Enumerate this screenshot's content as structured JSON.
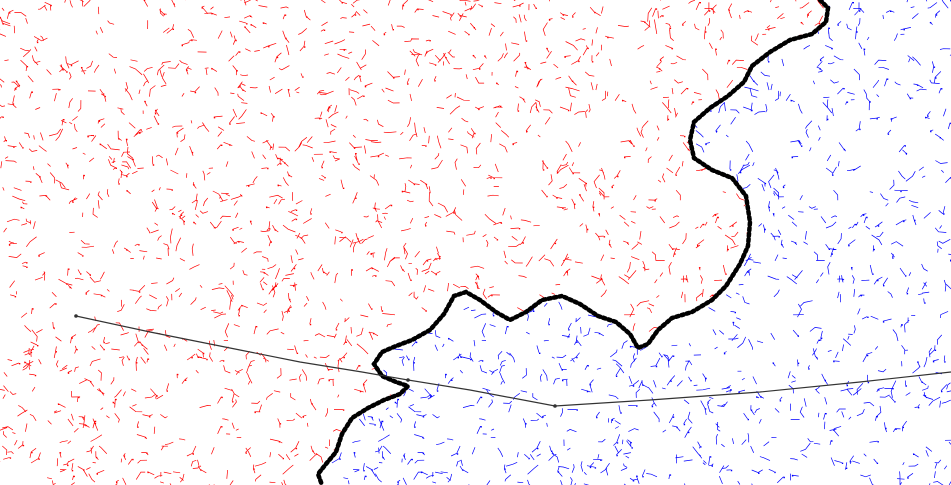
{
  "diagram": {
    "type": "two-tree-path-search",
    "colors": {
      "background": "#ffffff",
      "tree_start": "#ff0000",
      "tree_goal": "#0000ff",
      "frontier": "#000000",
      "path": "#333333"
    },
    "regions": [
      {
        "name": "start-tree",
        "color": "#ff0000"
      },
      {
        "name": "goal-tree",
        "color": "#0000ff"
      }
    ],
    "frontier": {
      "style": "dotted",
      "color": "#000000"
    },
    "path": {
      "style": "thin-polyline",
      "color": "#333333"
    }
  }
}
